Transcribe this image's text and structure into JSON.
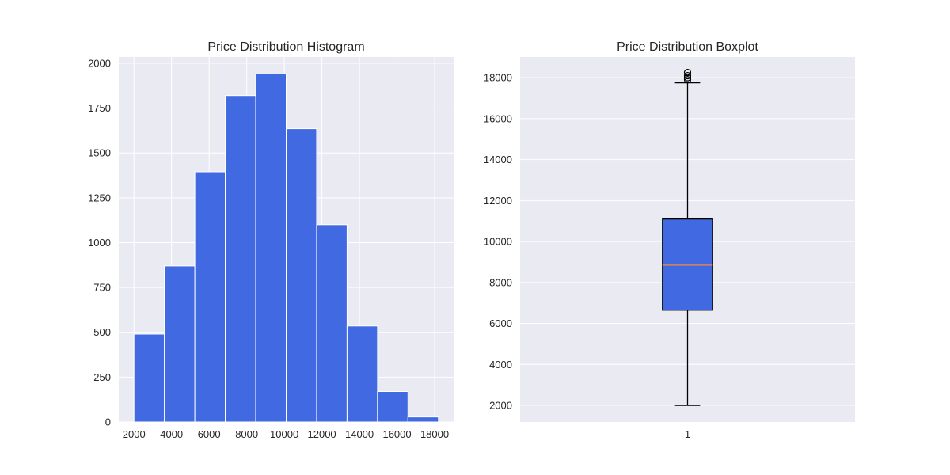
{
  "chart_data": [
    {
      "type": "bar",
      "title": "Price Distribution Histogram",
      "xlabel": "",
      "ylabel": "",
      "bin_edges": [
        2000,
        3620,
        5240,
        6860,
        8480,
        10100,
        11720,
        13340,
        14960,
        16580,
        18200
      ],
      "counts": [
        490,
        870,
        1395,
        1820,
        1940,
        1635,
        1100,
        535,
        170,
        28
      ],
      "xlim": [
        1190,
        19010
      ],
      "ylim": [
        0,
        2035
      ],
      "xticks": [
        2000,
        4000,
        6000,
        8000,
        10000,
        12000,
        14000,
        16000,
        18000
      ],
      "yticks": [
        0,
        250,
        500,
        750,
        1000,
        1250,
        1500,
        1750,
        2000
      ],
      "grid": true,
      "colors": {
        "bar": "#4169e1",
        "bar_edge": "#ffffff",
        "background": "#eaeaf2",
        "grid": "#ffffff"
      }
    },
    {
      "type": "box",
      "title": "Price Distribution Boxplot",
      "xlabel": "",
      "ylabel": "",
      "categories": [
        "1"
      ],
      "box": {
        "whisker_low": 2000,
        "q1": 6650,
        "median": 8850,
        "q3": 11100,
        "whisker_high": 17750
      },
      "outliers": [
        17900,
        18000,
        18100,
        18250
      ],
      "xlim": [
        0.5,
        1.5
      ],
      "ylim": [
        1190,
        19010
      ],
      "yticks": [
        2000,
        4000,
        6000,
        8000,
        10000,
        12000,
        14000,
        16000,
        18000
      ],
      "grid": true,
      "colors": {
        "box": "#4169e1",
        "median": "#dd8452",
        "line": "#000000",
        "background": "#eaeaf2",
        "grid": "#ffffff"
      }
    }
  ]
}
